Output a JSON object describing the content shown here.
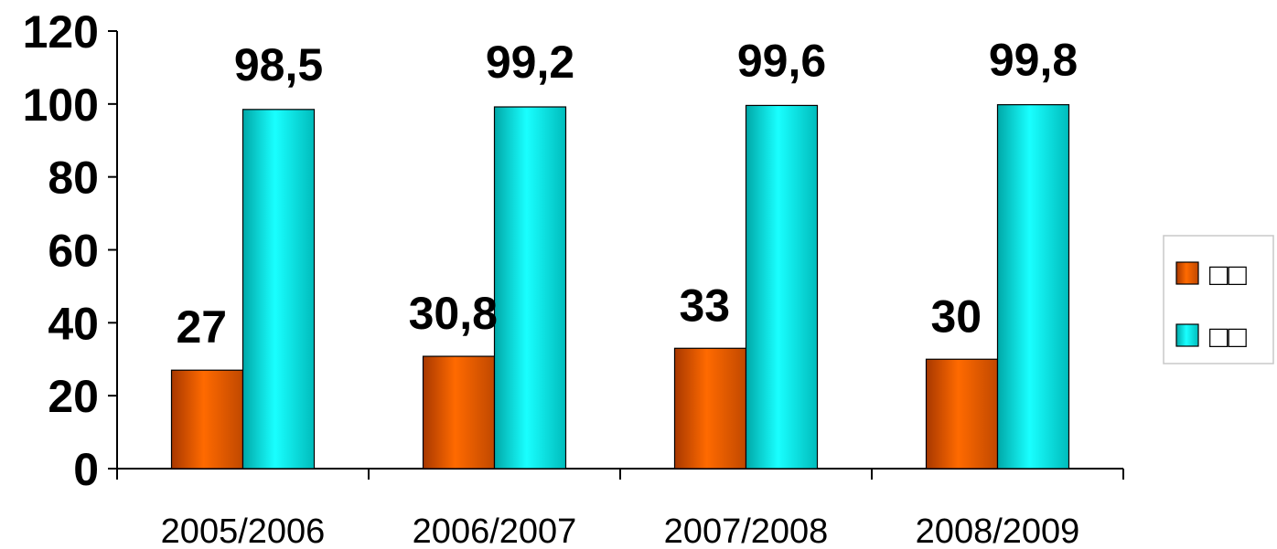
{
  "chart_data": {
    "type": "bar",
    "categories": [
      "2005/2006",
      "2006/2007",
      "2007/2008",
      "2008/2009"
    ],
    "series": [
      {
        "name": "□□",
        "values": [
          27,
          30.8,
          33,
          30
        ],
        "labels": [
          "27",
          "30,8",
          "33",
          "30"
        ],
        "color": "#ff6a00"
      },
      {
        "name": "□□",
        "values": [
          98.5,
          99.2,
          99.6,
          99.8
        ],
        "labels": [
          "98,5",
          "99,2",
          "99,6",
          "99,8"
        ],
        "color": "#00e6e6"
      }
    ],
    "ylim": [
      0,
      120
    ],
    "yticks": [
      "0",
      "20",
      "40",
      "60",
      "80",
      "100",
      "120"
    ],
    "title": "",
    "xlabel": "",
    "ylabel": "",
    "grid": false,
    "legend_position": "right"
  }
}
